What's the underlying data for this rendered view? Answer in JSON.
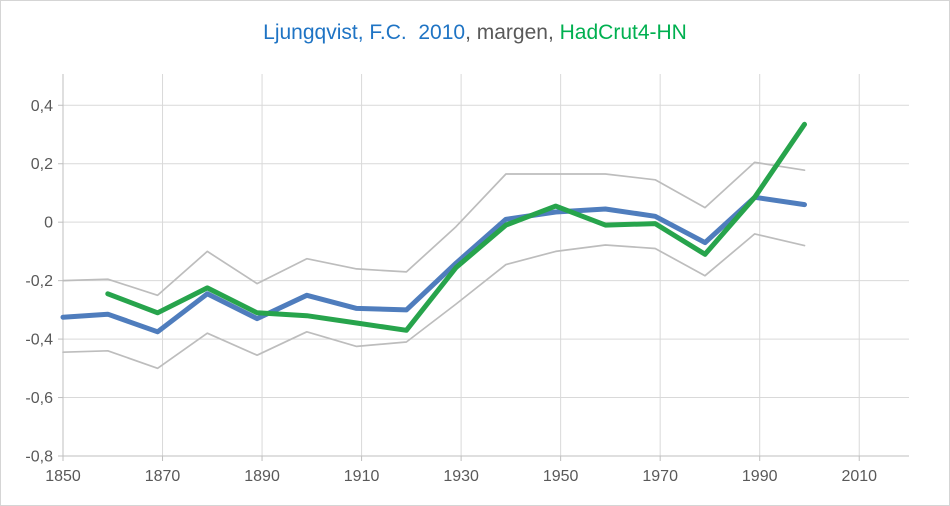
{
  "chart": {
    "title_parts": [
      {
        "text": "Ljungqvist, F.C.  2010",
        "color": "#1F74C4"
      },
      {
        "text": ", margen, ",
        "color": "#595959"
      },
      {
        "text": "HadCrut4-HN",
        "color": "#00B050"
      }
    ]
  },
  "chart_data": {
    "type": "line",
    "title": "Ljungqvist, F.C.  2010, margen, HadCrut4-HN",
    "xlabel": "",
    "ylabel": "",
    "x": [
      1850,
      1859,
      1869,
      1879,
      1889,
      1899,
      1909,
      1919,
      1929,
      1939,
      1949,
      1959,
      1969,
      1979,
      1989,
      1999
    ],
    "series": [
      {
        "name": "margen-upper",
        "color": "#BDBDBD",
        "width": 1.7,
        "values": [
          -0.2,
          -0.195,
          -0.25,
          -0.1,
          -0.21,
          -0.125,
          -0.16,
          -0.17,
          -0.015,
          0.165,
          0.165,
          0.165,
          0.145,
          0.05,
          0.205,
          0.178
        ]
      },
      {
        "name": "margen-lower",
        "color": "#BDBDBD",
        "width": 1.7,
        "values": [
          -0.445,
          -0.44,
          -0.5,
          -0.38,
          -0.455,
          -0.375,
          -0.425,
          -0.41,
          -0.28,
          -0.145,
          -0.1,
          -0.078,
          -0.09,
          -0.183,
          -0.04,
          -0.08
        ]
      },
      {
        "name": "Ljungqvist, F.C. 2010",
        "color": "#4F7DBD",
        "width": 5,
        "values": [
          -0.325,
          -0.315,
          -0.375,
          -0.245,
          -0.33,
          -0.25,
          -0.295,
          -0.3,
          -0.14,
          0.01,
          0.035,
          0.045,
          0.02,
          -0.07,
          0.085,
          0.06
        ]
      },
      {
        "name": "HadCrut4-HN",
        "color": "#27A44C",
        "width": 5,
        "values": [
          null,
          -0.245,
          -0.31,
          -0.225,
          -0.31,
          -0.32,
          -0.345,
          -0.37,
          -0.155,
          -0.01,
          0.055,
          -0.01,
          -0.005,
          -0.11,
          0.085,
          0.335
        ]
      }
    ],
    "xlim": [
      1850,
      2020
    ],
    "ylim": [
      -0.8,
      0.507
    ],
    "x_ticks": [
      1850,
      1870,
      1890,
      1910,
      1930,
      1950,
      1970,
      1990,
      2010
    ],
    "x_tick_labels": [
      "1850",
      "1870",
      "1890",
      "1910",
      "1930",
      "1950",
      "1970",
      "1990",
      "2010"
    ],
    "y_ticks": [
      0.4,
      0.2,
      0,
      -0.2,
      -0.4,
      -0.6,
      -0.8
    ],
    "y_tick_labels": [
      "0,4",
      "0,2",
      "0",
      "-0,2",
      "-0,4",
      "-0,6",
      "-0,8"
    ],
    "grid": true,
    "legend": "none (colored title acts as legend)",
    "colors": {
      "grid": "#D9D9D9",
      "axis": "#BFBFBF",
      "tick_label": "#595959",
      "background": "#FFFFFF"
    }
  }
}
